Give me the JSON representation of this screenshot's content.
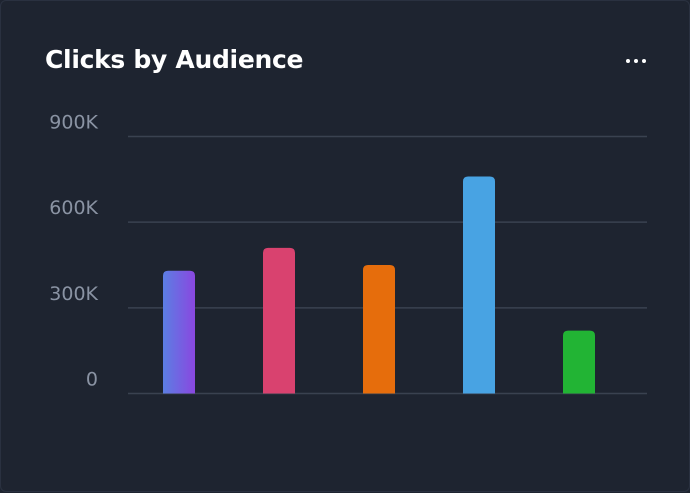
{
  "card": {
    "title": "Clicks by Audience",
    "menu_icon": "more-horizontal-icon"
  },
  "chart_data": {
    "type": "bar",
    "title": "Clicks by Audience",
    "xlabel": "",
    "ylabel": "",
    "ylim": [
      0,
      900000
    ],
    "yticks": [
      0,
      300000,
      600000,
      900000
    ],
    "ytick_labels": [
      "0",
      "300K",
      "600K",
      "900K"
    ],
    "grid": true,
    "values": [
      430000,
      510000,
      450000,
      760000,
      220000
    ],
    "colors": [
      [
        "#5b7fe3",
        "#8a47e0"
      ],
      [
        "#d9426f"
      ],
      [
        "#e66d0c"
      ],
      [
        "#48a3e3"
      ],
      [
        "#22b434"
      ]
    ]
  }
}
